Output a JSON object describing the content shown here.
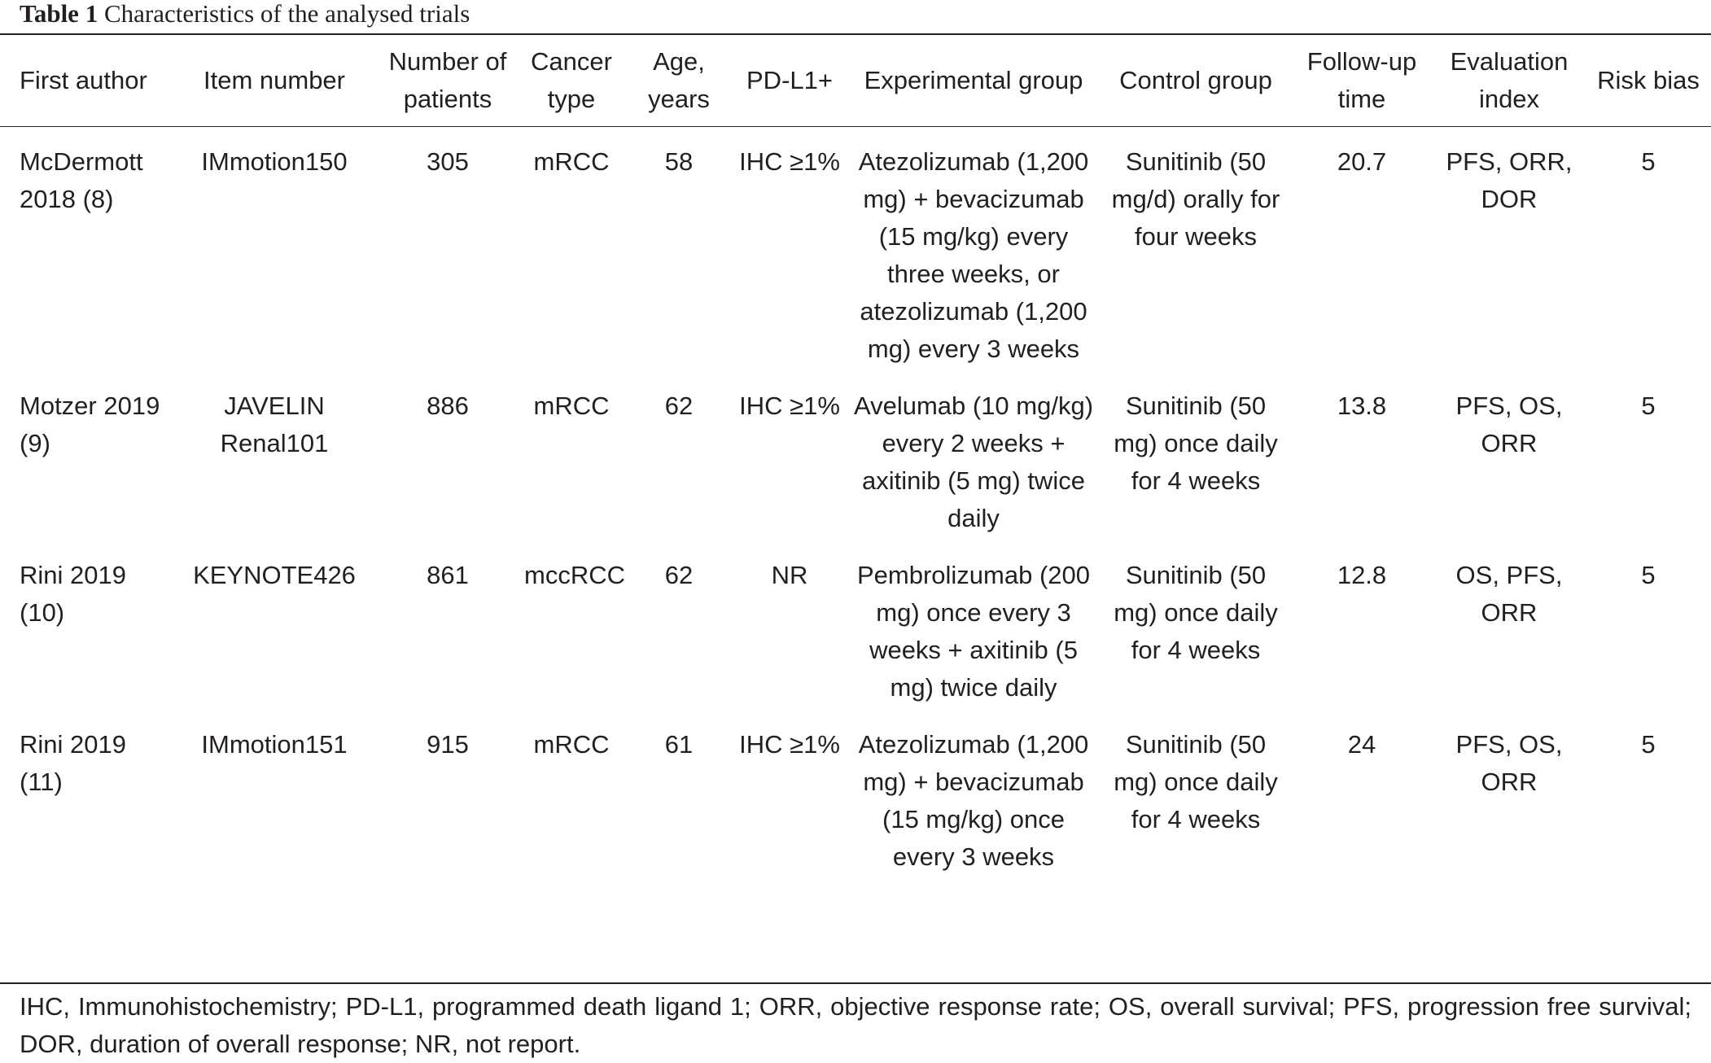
{
  "caption": {
    "label": "Table 1",
    "text": "Characteristics of the analysed trials"
  },
  "table": {
    "headers": [
      "First author",
      "Item number",
      "Number of patients",
      "Cancer type",
      "Age, years",
      "PD-L1+",
      "Experimental group",
      "Control group",
      "Follow-up time",
      "Evaluation index",
      "Risk bias"
    ],
    "rows": [
      [
        "McDermott 2018 (8)",
        "IMmotion150",
        "305",
        "mRCC",
        "58",
        "IHC ≥1%",
        "Atezolizumab (1,200 mg) + bevacizumab (15 mg/kg) every three weeks, or atezolizumab (1,200 mg) every 3 weeks",
        "Sunitinib (50 mg/d) orally for four weeks",
        "20.7",
        "PFS, ORR, DOR",
        "5"
      ],
      [
        "Motzer 2019 (9)",
        "JAVELIN Renal101",
        "886",
        "mRCC",
        "62",
        "IHC ≥1%",
        "Avelumab (10 mg/kg) every 2 weeks + axitinib (5 mg) twice daily",
        "Sunitinib (50 mg) once daily for 4 weeks",
        "13.8",
        "PFS, OS, ORR",
        "5"
      ],
      [
        "Rini 2019 (10)",
        "KEYNOTE426",
        "861",
        "mccRCC",
        "62",
        "NR",
        "Pembrolizumab (200 mg) once every 3 weeks + axitinib (5 mg) twice daily",
        "Sunitinib (50 mg) once daily for 4 weeks",
        "12.8",
        "OS, PFS, ORR",
        "5"
      ],
      [
        "Rini 2019 (11)",
        "IMmotion151",
        "915",
        "mRCC",
        "61",
        "IHC ≥1%",
        "Atezolizumab (1,200 mg) + bevacizumab (15 mg/kg) once every 3 weeks",
        "Sunitinib (50 mg) once daily for 4 weeks",
        "24",
        "PFS, OS, ORR",
        "5"
      ]
    ]
  },
  "footnote": "IHC, Immunohistochemistry; PD-L1, programmed death ligand 1; ORR, objective response rate; OS, overall survival; PFS, progression free survival; DOR, duration of overall response; NR, not report."
}
